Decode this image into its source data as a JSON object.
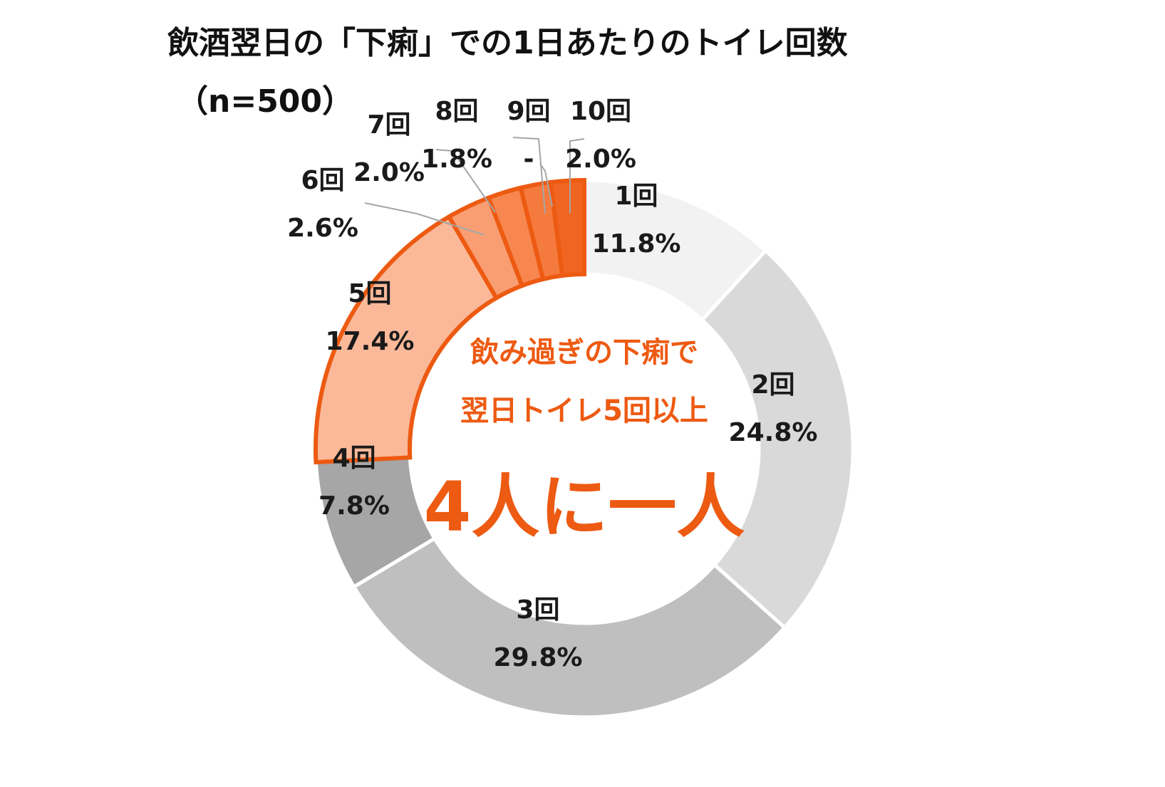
{
  "chart_data": {
    "type": "donut",
    "title": "飲酒翌日の「下痢」での1日あたりのトイレ回数",
    "subtitle": "（n=500）",
    "categories": [
      "1回",
      "2回",
      "3回",
      "4回",
      "5回",
      "6回",
      "7回",
      "8回",
      "9回",
      "10回"
    ],
    "values": [
      11.8,
      24.8,
      29.8,
      7.8,
      17.4,
      2.6,
      2.0,
      1.8,
      null,
      2.0
    ],
    "value_labels": [
      "11.8%",
      "24.8%",
      "29.8%",
      "7.8%",
      "17.4%",
      "2.6%",
      "2.0%",
      "1.8%",
      "-",
      "2.0%"
    ],
    "highlighted_categories": [
      "5回",
      "6回",
      "7回",
      "8回",
      "9回",
      "10回"
    ],
    "legend": "none",
    "colors": {
      "1回": "#f2f2f2",
      "2回": "#d9d9d9",
      "3回": "#bfbfbf",
      "4回": "#a6a6a6",
      "5回": "#fbb99a",
      "6回": "#f99e73",
      "7回": "#f7874f",
      "8回": "#f57a3d",
      "9回": "#f2702e",
      "10回": "#f06522",
      "highlight_border": "#ed5a12",
      "callout": "#ed5a12"
    },
    "callout": {
      "line1": "飲み過ぎの下痢で",
      "line2": "翌日トイレ5回以上",
      "line3": "4人に一人"
    }
  }
}
